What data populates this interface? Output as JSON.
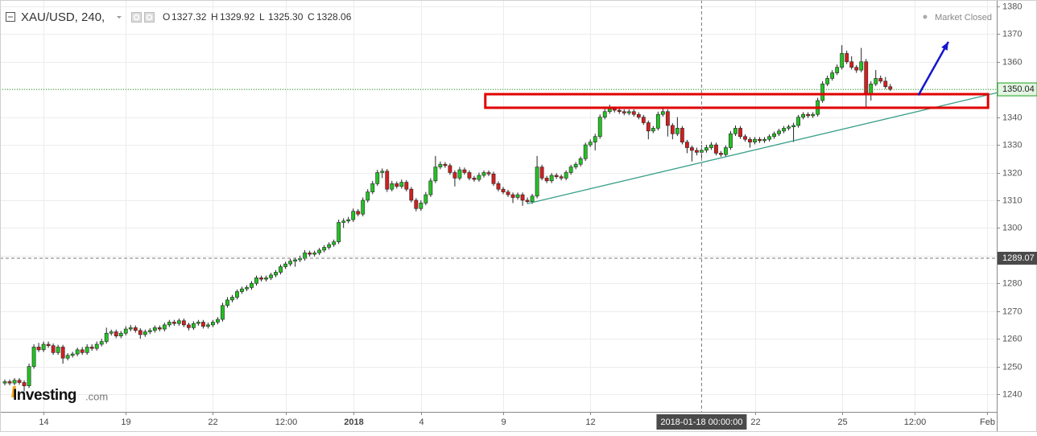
{
  "chart_data": {
    "type": "candlestick",
    "symbol": "XAU/USD, 240,",
    "legend_keys": [
      "O",
      "H",
      "L",
      "C"
    ],
    "legend_values": [
      "1327.32",
      "1329.92",
      "1325.30",
      "1328.06"
    ],
    "status": "Market Closed",
    "logo": "Investing",
    "logo_suffix": ".com",
    "up_color": "#22c322",
    "down_color": "#d41f1f",
    "grid": true,
    "xlim": [
      -1,
      205
    ],
    "ylim": [
      1233.6,
      1382.3
    ],
    "yticks": [
      1240,
      1250,
      1260,
      1270,
      1280,
      1290,
      1300,
      1310,
      1320,
      1330,
      1340,
      1350,
      1360,
      1370,
      1380
    ],
    "xticks": [
      {
        "value": 8,
        "label": "14"
      },
      {
        "value": 25,
        "label": "19"
      },
      {
        "value": 43,
        "label": "22"
      },
      {
        "value": 58,
        "label": "12:00"
      },
      {
        "value": 72,
        "label": "2018"
      },
      {
        "value": 86,
        "label": "4"
      },
      {
        "value": 103,
        "label": "9"
      },
      {
        "value": 121,
        "label": "12"
      },
      {
        "value": 155,
        "label": "22"
      },
      {
        "value": 173,
        "label": "25"
      },
      {
        "value": 188,
        "label": "12:00"
      },
      {
        "value": 203,
        "label": "Feb"
      }
    ],
    "crosshair": {
      "x": 144,
      "x_label": "2018-01-18 00:00:00",
      "y": 1289.07
    },
    "trendline": {
      "x": [
        108,
        205
      ],
      "y": [
        1308.8,
        1348.8
      ],
      "color": "#3aa08a"
    },
    "zone": {
      "x": [
        99.3,
        203.2
      ],
      "y": [
        1343.4,
        1348.3
      ],
      "color": "#e00000"
    },
    "arrow": {
      "x": [
        188.8,
        195
      ],
      "y": [
        1347.9,
        1367.2
      ],
      "color": "#1515d0"
    },
    "candles": [
      [
        1244,
        1245.3,
        1243.2,
        1244.5
      ],
      [
        1244.5,
        1245.3,
        1243.2,
        1244
      ],
      [
        1244,
        1245.8,
        1243.2,
        1245
      ],
      [
        1245,
        1245.8,
        1243.4,
        1244.2
      ],
      [
        1244.2,
        1245,
        1241,
        1243
      ],
      [
        1243,
        1251,
        1242.2,
        1250
      ],
      [
        1250,
        1258,
        1249.2,
        1257
      ],
      [
        1257,
        1258.5,
        1255.2,
        1256
      ],
      [
        1256,
        1259,
        1255.2,
        1258
      ],
      [
        1258,
        1259,
        1256.7,
        1257.5
      ],
      [
        1257.5,
        1258.3,
        1254.2,
        1255
      ],
      [
        1255,
        1257.8,
        1254.2,
        1257
      ],
      [
        1257,
        1257.8,
        1251,
        1253
      ],
      [
        1253,
        1254.8,
        1252.2,
        1254
      ],
      [
        1254,
        1255.3,
        1253.2,
        1254.5
      ],
      [
        1254.5,
        1256.8,
        1253.7,
        1256
      ],
      [
        1256,
        1257,
        1254.2,
        1255
      ],
      [
        1255,
        1258,
        1254.2,
        1257
      ],
      [
        1257,
        1258,
        1255.7,
        1256.5
      ],
      [
        1256.5,
        1259,
        1255.7,
        1258
      ],
      [
        1258,
        1260,
        1257.2,
        1259
      ],
      [
        1259,
        1264,
        1258.2,
        1262
      ],
      [
        1262,
        1263.3,
        1261.2,
        1262.5
      ],
      [
        1262.5,
        1263.3,
        1260.2,
        1261
      ],
      [
        1261,
        1262.8,
        1260.2,
        1262
      ],
      [
        1262,
        1264.5,
        1261.2,
        1263.5
      ],
      [
        1263.5,
        1265,
        1262.7,
        1264
      ],
      [
        1264,
        1264.8,
        1262.2,
        1263
      ],
      [
        1263,
        1263.8,
        1260,
        1261.5
      ],
      [
        1261.5,
        1263.3,
        1260.7,
        1262.5
      ],
      [
        1262.5,
        1263.8,
        1261.7,
        1263
      ],
      [
        1263,
        1264.8,
        1262.2,
        1264
      ],
      [
        1264,
        1264.8,
        1262.7,
        1263.5
      ],
      [
        1263.5,
        1265.8,
        1262.7,
        1265
      ],
      [
        1265,
        1266.8,
        1264.2,
        1266
      ],
      [
        1266,
        1266.8,
        1264.7,
        1265.5
      ],
      [
        1265.5,
        1267.3,
        1264.7,
        1266.5
      ],
      [
        1266.5,
        1267.3,
        1264.2,
        1265
      ],
      [
        1265,
        1265.8,
        1263,
        1264
      ],
      [
        1264,
        1266.3,
        1263.2,
        1265.5
      ],
      [
        1265.5,
        1266.8,
        1264.7,
        1266
      ],
      [
        1266,
        1266.8,
        1263.7,
        1264.5
      ],
      [
        1264.5,
        1265.8,
        1263.7,
        1265
      ],
      [
        1265,
        1266.8,
        1264.2,
        1266
      ],
      [
        1266,
        1267.8,
        1265.2,
        1267
      ],
      [
        1267,
        1273,
        1266.2,
        1272
      ],
      [
        1272,
        1275,
        1271.2,
        1274
      ],
      [
        1274,
        1275.8,
        1273.2,
        1275
      ],
      [
        1275,
        1277.8,
        1274.2,
        1277
      ],
      [
        1277,
        1278.8,
        1276.2,
        1278
      ],
      [
        1278,
        1279.3,
        1277.2,
        1278.5
      ],
      [
        1278.5,
        1280.8,
        1277.7,
        1280
      ],
      [
        1280,
        1282.8,
        1279.2,
        1282
      ],
      [
        1282,
        1282.8,
        1280.7,
        1281.5
      ],
      [
        1281.5,
        1282.8,
        1280.7,
        1282
      ],
      [
        1282,
        1283.8,
        1281.2,
        1283
      ],
      [
        1283,
        1284.8,
        1282.2,
        1284
      ],
      [
        1284,
        1286.8,
        1283.2,
        1286
      ],
      [
        1286,
        1287.8,
        1285.2,
        1287
      ],
      [
        1287,
        1288.8,
        1286.2,
        1288
      ],
      [
        1288,
        1289.3,
        1286,
        1288.5
      ],
      [
        1288.5,
        1290,
        1287.7,
        1289
      ],
      [
        1289,
        1292,
        1288.2,
        1291
      ],
      [
        1291,
        1291.8,
        1289.7,
        1290.5
      ],
      [
        1290.5,
        1291.8,
        1289.7,
        1291
      ],
      [
        1291,
        1292.8,
        1290.2,
        1292
      ],
      [
        1292,
        1293.8,
        1291.2,
        1293
      ],
      [
        1293,
        1294.8,
        1292.2,
        1294
      ],
      [
        1294,
        1295.8,
        1293.2,
        1295
      ],
      [
        1295,
        1303,
        1294.2,
        1302
      ],
      [
        1302,
        1303.5,
        1300,
        1302.5
      ],
      [
        1302.5,
        1304,
        1301.7,
        1303
      ],
      [
        1303,
        1307,
        1302.2,
        1306
      ],
      [
        1306,
        1306.8,
        1304.2,
        1305
      ],
      [
        1305,
        1311,
        1304.2,
        1310
      ],
      [
        1310,
        1314,
        1309.2,
        1313
      ],
      [
        1313,
        1317,
        1312.2,
        1316
      ],
      [
        1316,
        1321,
        1315.2,
        1320
      ],
      [
        1320,
        1321.5,
        1318,
        1320.5
      ],
      [
        1320.5,
        1321.3,
        1313,
        1314
      ],
      [
        1314,
        1317,
        1313.2,
        1316
      ],
      [
        1316,
        1316.8,
        1314.2,
        1315
      ],
      [
        1315,
        1317.5,
        1314.2,
        1316.5
      ],
      [
        1316.5,
        1317.3,
        1313.2,
        1314
      ],
      [
        1314,
        1314.8,
        1309.2,
        1310
      ],
      [
        1310,
        1310.8,
        1306,
        1307
      ],
      [
        1307,
        1310,
        1306.2,
        1309
      ],
      [
        1309,
        1313,
        1308.2,
        1312
      ],
      [
        1312,
        1318,
        1311.2,
        1317
      ],
      [
        1317,
        1326,
        1316.2,
        1322
      ],
      [
        1322,
        1324,
        1321.2,
        1323
      ],
      [
        1323,
        1323.8,
        1321.7,
        1322.5
      ],
      [
        1322.5,
        1323.3,
        1319.2,
        1320
      ],
      [
        1320,
        1320.8,
        1315,
        1318
      ],
      [
        1318,
        1322,
        1317.2,
        1321
      ],
      [
        1321,
        1321.8,
        1319.2,
        1320
      ],
      [
        1320,
        1320.8,
        1317.2,
        1318
      ],
      [
        1318,
        1318.8,
        1316.7,
        1317.5
      ],
      [
        1317.5,
        1320,
        1316.7,
        1319
      ],
      [
        1319,
        1320.8,
        1318.2,
        1320
      ],
      [
        1320,
        1320.8,
        1318.7,
        1319.5
      ],
      [
        1319.5,
        1320.3,
        1315.2,
        1316
      ],
      [
        1316,
        1316.8,
        1313.2,
        1314
      ],
      [
        1314,
        1314.8,
        1312.2,
        1313
      ],
      [
        1313,
        1313.8,
        1311.2,
        1312
      ],
      [
        1312,
        1312.8,
        1309,
        1311
      ],
      [
        1311,
        1312.8,
        1310.2,
        1312
      ],
      [
        1312,
        1312.8,
        1308,
        1310
      ],
      [
        1310,
        1311,
        1308.7,
        1309.5
      ],
      [
        1309.5,
        1312.3,
        1308.7,
        1311.5
      ],
      [
        1311.5,
        1326,
        1310.7,
        1322
      ],
      [
        1322,
        1322.8,
        1317.2,
        1318
      ],
      [
        1318,
        1318.8,
        1316.2,
        1317
      ],
      [
        1317,
        1319.8,
        1316.2,
        1319
      ],
      [
        1319,
        1319.8,
        1317.7,
        1318.5
      ],
      [
        1318.5,
        1319.3,
        1317.2,
        1318
      ],
      [
        1318,
        1320.8,
        1317.2,
        1320
      ],
      [
        1320,
        1322.8,
        1319.2,
        1322
      ],
      [
        1322,
        1323.8,
        1321.2,
        1323
      ],
      [
        1323,
        1325.8,
        1322.2,
        1325
      ],
      [
        1325,
        1330.8,
        1324.2,
        1330
      ],
      [
        1330,
        1332,
        1329.2,
        1331
      ],
      [
        1331,
        1334,
        1328,
        1333
      ],
      [
        1333,
        1341,
        1332.2,
        1340
      ],
      [
        1340,
        1343,
        1339.2,
        1342
      ],
      [
        1342,
        1344.5,
        1341.2,
        1343
      ],
      [
        1343,
        1343.8,
        1341.7,
        1342.5
      ],
      [
        1342.5,
        1343.3,
        1341.2,
        1342
      ],
      [
        1342,
        1342.8,
        1340.7,
        1341.5
      ],
      [
        1341.5,
        1342.8,
        1340.7,
        1342
      ],
      [
        1342,
        1342.8,
        1340.2,
        1341
      ],
      [
        1341,
        1341.8,
        1339.2,
        1340
      ],
      [
        1340,
        1340.8,
        1337.2,
        1338
      ],
      [
        1338,
        1338.8,
        1332,
        1335
      ],
      [
        1335,
        1336.8,
        1334.2,
        1336
      ],
      [
        1336,
        1342,
        1335.2,
        1341
      ],
      [
        1341,
        1343.5,
        1340.2,
        1342
      ],
      [
        1342,
        1342.8,
        1333,
        1337
      ],
      [
        1337,
        1337.8,
        1332,
        1334
      ],
      [
        1334,
        1340,
        1333.2,
        1336
      ],
      [
        1336,
        1336.8,
        1330.2,
        1331
      ],
      [
        1331,
        1331.8,
        1327,
        1329
      ],
      [
        1329,
        1329.8,
        1324,
        1328
      ],
      [
        1328,
        1329,
        1326.2,
        1327.32
      ],
      [
        1327.32,
        1329.92,
        1325.3,
        1328.06
      ],
      [
        1328.06,
        1330,
        1327.2,
        1329
      ],
      [
        1329,
        1331,
        1328.2,
        1330
      ],
      [
        1330,
        1330.8,
        1326.2,
        1327
      ],
      [
        1327,
        1327.8,
        1325.7,
        1326.5
      ],
      [
        1326.5,
        1329.8,
        1325.7,
        1329
      ],
      [
        1329,
        1335,
        1328.2,
        1334
      ],
      [
        1334,
        1337,
        1333.2,
        1336
      ],
      [
        1336,
        1336.8,
        1332.2,
        1333
      ],
      [
        1333,
        1333.8,
        1331.2,
        1332
      ],
      [
        1332,
        1332.8,
        1329,
        1331
      ],
      [
        1331,
        1332.8,
        1330.2,
        1332
      ],
      [
        1332,
        1332.8,
        1330.7,
        1331.5
      ],
      [
        1331.5,
        1332.8,
        1330.7,
        1332
      ],
      [
        1332,
        1333.8,
        1331.2,
        1333
      ],
      [
        1333,
        1334.8,
        1332.2,
        1334
      ],
      [
        1334,
        1335.8,
        1333.2,
        1335
      ],
      [
        1335,
        1336.8,
        1334.2,
        1336
      ],
      [
        1336,
        1337.3,
        1335.2,
        1336.5
      ],
      [
        1336.5,
        1338,
        1331,
        1337
      ],
      [
        1337,
        1340.8,
        1336.2,
        1340
      ],
      [
        1340,
        1341.8,
        1339.2,
        1341
      ],
      [
        1341,
        1341.8,
        1339.7,
        1340.5
      ],
      [
        1340.5,
        1341.8,
        1339.7,
        1341
      ],
      [
        1341,
        1347,
        1340.2,
        1346
      ],
      [
        1346,
        1353,
        1345.2,
        1352
      ],
      [
        1352,
        1355,
        1351.2,
        1354
      ],
      [
        1354,
        1357,
        1353.2,
        1356
      ],
      [
        1356,
        1359,
        1355.2,
        1358
      ],
      [
        1358,
        1366,
        1357.2,
        1363
      ],
      [
        1363,
        1364,
        1359.2,
        1360
      ],
      [
        1360,
        1362,
        1357.2,
        1358
      ],
      [
        1358,
        1358.8,
        1356,
        1357
      ],
      [
        1357,
        1365,
        1356.2,
        1360
      ],
      [
        1360,
        1361,
        1343,
        1348
      ],
      [
        1348,
        1353,
        1346,
        1352
      ],
      [
        1352,
        1357,
        1351.2,
        1354
      ],
      [
        1354,
        1355,
        1352.2,
        1353
      ],
      [
        1353,
        1354.5,
        1350.2,
        1351
      ],
      [
        1351,
        1352,
        1349.5,
        1350.04
      ]
    ]
  }
}
